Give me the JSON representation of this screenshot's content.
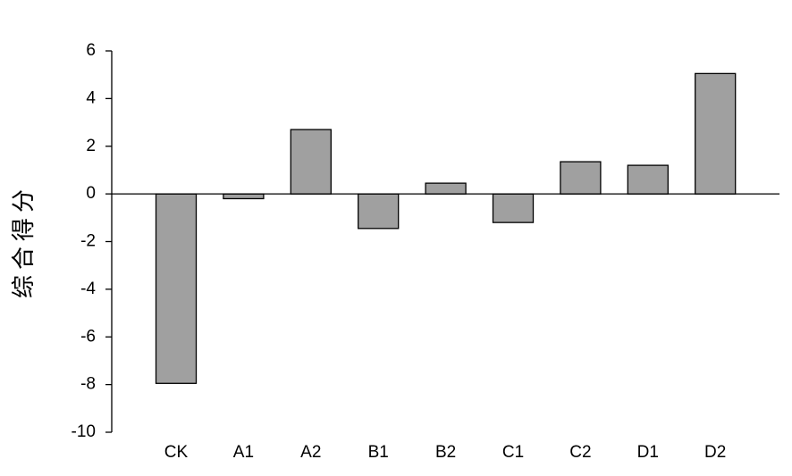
{
  "chart_data": {
    "type": "bar",
    "y_label": "综合得分",
    "categories": [
      "CK",
      "A1",
      "A2",
      "B1",
      "B2",
      "C1",
      "C2",
      "D1",
      "D2"
    ],
    "values": [
      -7.95,
      -0.2,
      2.7,
      -1.45,
      0.45,
      -1.2,
      1.35,
      1.2,
      5.05
    ],
    "color": "#a0a0a0",
    "ylim": [
      -10,
      6
    ],
    "yticks": [
      -10,
      -8,
      -6,
      -4,
      -2,
      0,
      2,
      4,
      6
    ],
    "grid": false
  }
}
